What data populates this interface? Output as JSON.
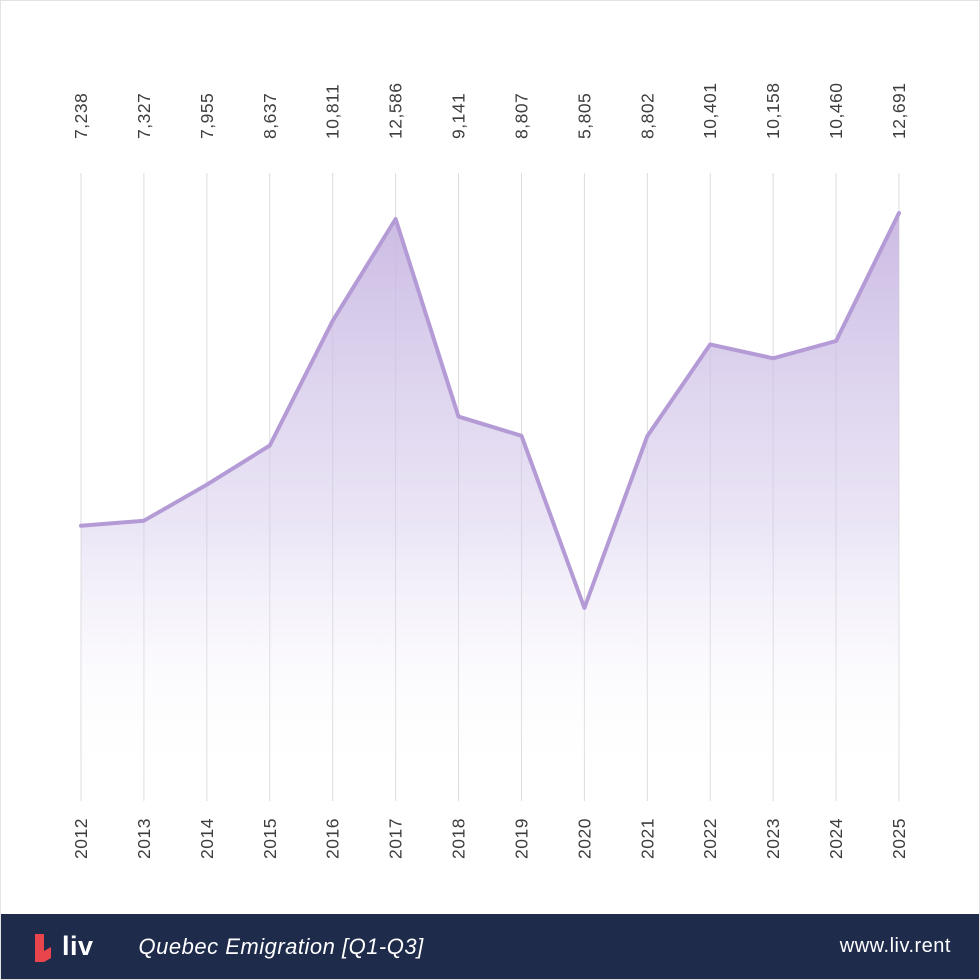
{
  "chart_data": {
    "type": "area",
    "title": "Quebec Emigration [Q1-Q3]",
    "categories": [
      "2012",
      "2013",
      "2014",
      "2015",
      "2016",
      "2017",
      "2018",
      "2019",
      "2020",
      "2021",
      "2022",
      "2023",
      "2024",
      "2025"
    ],
    "values": [
      7238,
      7327,
      7955,
      8637,
      10811,
      12586,
      9141,
      8807,
      5805,
      8802,
      10401,
      10158,
      10460,
      12691
    ],
    "value_labels": [
      "7,238",
      "7,327",
      "7,955",
      "8,637",
      "10,811",
      "12,586",
      "9,141",
      "8,807",
      "5,805",
      "8,802",
      "10,401",
      "10,158",
      "10,460",
      "12,691"
    ],
    "xlabel": "",
    "ylabel": "",
    "ylim": [
      0,
      13000
    ],
    "grid": "vertical-only",
    "legend": "none",
    "x_tick_rotation": 90,
    "value_labels_position": "top-rotated",
    "line_color": "#b49bd6",
    "fill_top_color": "#c6b4e0",
    "gridline_color": "#dcdcdc",
    "label_color": "#3d3d3d"
  },
  "footer": {
    "logo_text": "liv",
    "title": "Quebec Emigration [Q1-Q3]",
    "url": "www.liv.rent",
    "background": "#1e2b4b",
    "logo_color": "#e9454d"
  }
}
